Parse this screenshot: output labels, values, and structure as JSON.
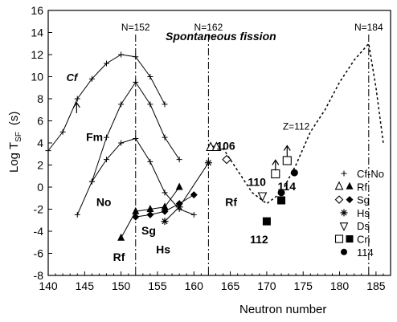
{
  "chart_data": {
    "type": "scatter",
    "title": "Spontaneous fission",
    "xlabel": "Neutron number",
    "ylabel": "Log T",
    "ylabel_sub": "SF",
    "ylabel_unit": "(s)",
    "xlim": [
      140,
      187
    ],
    "ylim": [
      -8,
      16
    ],
    "x_ticks": [
      140,
      145,
      150,
      155,
      160,
      165,
      170,
      175,
      180,
      185
    ],
    "y_ticks": [
      -8,
      -6,
      -4,
      -2,
      0,
      2,
      4,
      6,
      8,
      10,
      12,
      14,
      16
    ],
    "grid": false,
    "vlines": [
      {
        "x": 152,
        "label": "N=152"
      },
      {
        "x": 162,
        "label": "N=162"
      },
      {
        "x": 184,
        "label": "N=184"
      }
    ],
    "series": [
      {
        "name": "Cf",
        "marker": "plus",
        "line": "solid",
        "x": [
          140,
          142,
          144,
          146,
          148,
          150,
          152,
          154,
          156
        ],
        "y": [
          3.3,
          5.0,
          8.0,
          9.8,
          11.2,
          12.0,
          11.8,
          10.0,
          7.5
        ]
      },
      {
        "name": "Fm",
        "marker": "plus",
        "line": "solid",
        "x": [
          144,
          146,
          148,
          150,
          152,
          154,
          156,
          158
        ],
        "y": [
          -2.5,
          0.5,
          4.5,
          7.5,
          9.5,
          7.5,
          4.5,
          2.5
        ]
      },
      {
        "name": "No",
        "marker": "plus",
        "line": "solid",
        "x": [
          146,
          148,
          150,
          152,
          154,
          156,
          158,
          160
        ],
        "y": [
          0.5,
          2.5,
          4.0,
          4.4,
          2.3,
          -0.5,
          -2.0,
          -2.5
        ]
      },
      {
        "name": "Rf",
        "marker": "filled-triangle",
        "line": "solid",
        "x": [
          150,
          152,
          154,
          156,
          158
        ],
        "y": [
          -4.6,
          -2.2,
          -2.0,
          -1.8,
          0.0
        ]
      },
      {
        "name": "Sg",
        "marker": "filled-diamond",
        "line": "solid",
        "x": [
          152,
          154,
          156,
          158,
          160
        ],
        "y": [
          -2.7,
          -2.5,
          -2.2,
          -1.5,
          -0.7
        ]
      },
      {
        "name": "Hs",
        "marker": "asterisk",
        "line": "solid",
        "x": [
          156,
          158,
          162
        ],
        "y": [
          -3.1,
          -1.8,
          2.2
        ]
      },
      {
        "name": "Z=112",
        "marker": "none",
        "line": "dotted",
        "x": [
          162,
          164,
          166,
          168,
          170,
          172,
          174,
          176,
          178,
          180,
          182,
          184,
          185,
          186
        ],
        "y": [
          3.8,
          3.5,
          1.5,
          -0.5,
          -1.5,
          -0.5,
          2.0,
          5.0,
          7.0,
          9.5,
          11.5,
          13.0,
          9.0,
          4.0
        ]
      }
    ],
    "special_points": [
      {
        "label": "Rf",
        "marker": "open-triangle",
        "x": 162.3,
        "y": 3.6
      },
      {
        "label": "Rf",
        "marker": "open-triangle",
        "x": 163.1,
        "y": 3.6
      },
      {
        "label": "Sg",
        "marker": "open-diamond",
        "x": 164.5,
        "y": 2.5
      },
      {
        "label": "Ds",
        "marker": "open-triangle-down",
        "x": 169.4,
        "y": -0.8
      },
      {
        "label": "Cn",
        "marker": "open-square",
        "x": 171.2,
        "y": 1.2
      },
      {
        "label": "Cn",
        "marker": "filled-square",
        "x": 170.0,
        "y": -3.1
      },
      {
        "label": "Cn",
        "marker": "filled-square",
        "x": 172.0,
        "y": -1.2
      },
      {
        "label": "Cn",
        "marker": "open-square",
        "x": 172.8,
        "y": 2.4
      },
      {
        "label": "114",
        "marker": "filled-circle",
        "x": 172.0,
        "y": -0.5
      },
      {
        "label": "114",
        "marker": "filled-circle",
        "x": 173.8,
        "y": 1.3
      }
    ],
    "uncertainty_arrows": [
      {
        "x": 143.9,
        "y": 6.7
      },
      {
        "x": 171.2,
        "y": 1.5
      },
      {
        "x": 172.8,
        "y": 2.8
      }
    ],
    "annotations": [
      {
        "text": "Cf",
        "x": 142.5,
        "y": 9.6,
        "style": "bold-italic"
      },
      {
        "text": "Fm",
        "x": 145.2,
        "y": 4.2,
        "style": "bold"
      },
      {
        "text": "No",
        "x": 146.6,
        "y": -1.7,
        "style": "bold"
      },
      {
        "text": "Rf",
        "x": 148.9,
        "y": -6.7,
        "style": "bold"
      },
      {
        "text": "Sg",
        "x": 152.8,
        "y": -4.3,
        "style": "bold"
      },
      {
        "text": "Hs",
        "x": 154.8,
        "y": -6.0,
        "style": "bold"
      },
      {
        "text": "106",
        "x": 163.1,
        "y": 3.4,
        "style": "bold"
      },
      {
        "text": "110",
        "x": 167.4,
        "y": 0.1,
        "style": "bold"
      },
      {
        "text": "Rf",
        "x": 164.3,
        "y": -1.7,
        "style": "bold"
      },
      {
        "text": "112",
        "x": 167.7,
        "y": -5.1,
        "style": "bold"
      },
      {
        "text": "114",
        "x": 171.5,
        "y": -0.3,
        "style": "bold"
      },
      {
        "text": "Z=112",
        "x": 172.2,
        "y": 5.2,
        "style": "normal"
      }
    ],
    "legend": {
      "placement": "lower-right",
      "entries": [
        {
          "marker": "plus",
          "label": "Cf-No"
        },
        {
          "marker": "open-triangle",
          "marker2": "filled-triangle",
          "label": "Rf"
        },
        {
          "marker": "open-diamond",
          "marker2": "filled-diamond",
          "label": "Sg"
        },
        {
          "marker": "asterisk",
          "label": "Hs"
        },
        {
          "marker": "open-triangle-down",
          "label": "Ds"
        },
        {
          "marker": "open-square",
          "marker2": "filled-square",
          "label": "Cn"
        },
        {
          "marker": "filled-circle",
          "label": "114"
        }
      ]
    }
  }
}
